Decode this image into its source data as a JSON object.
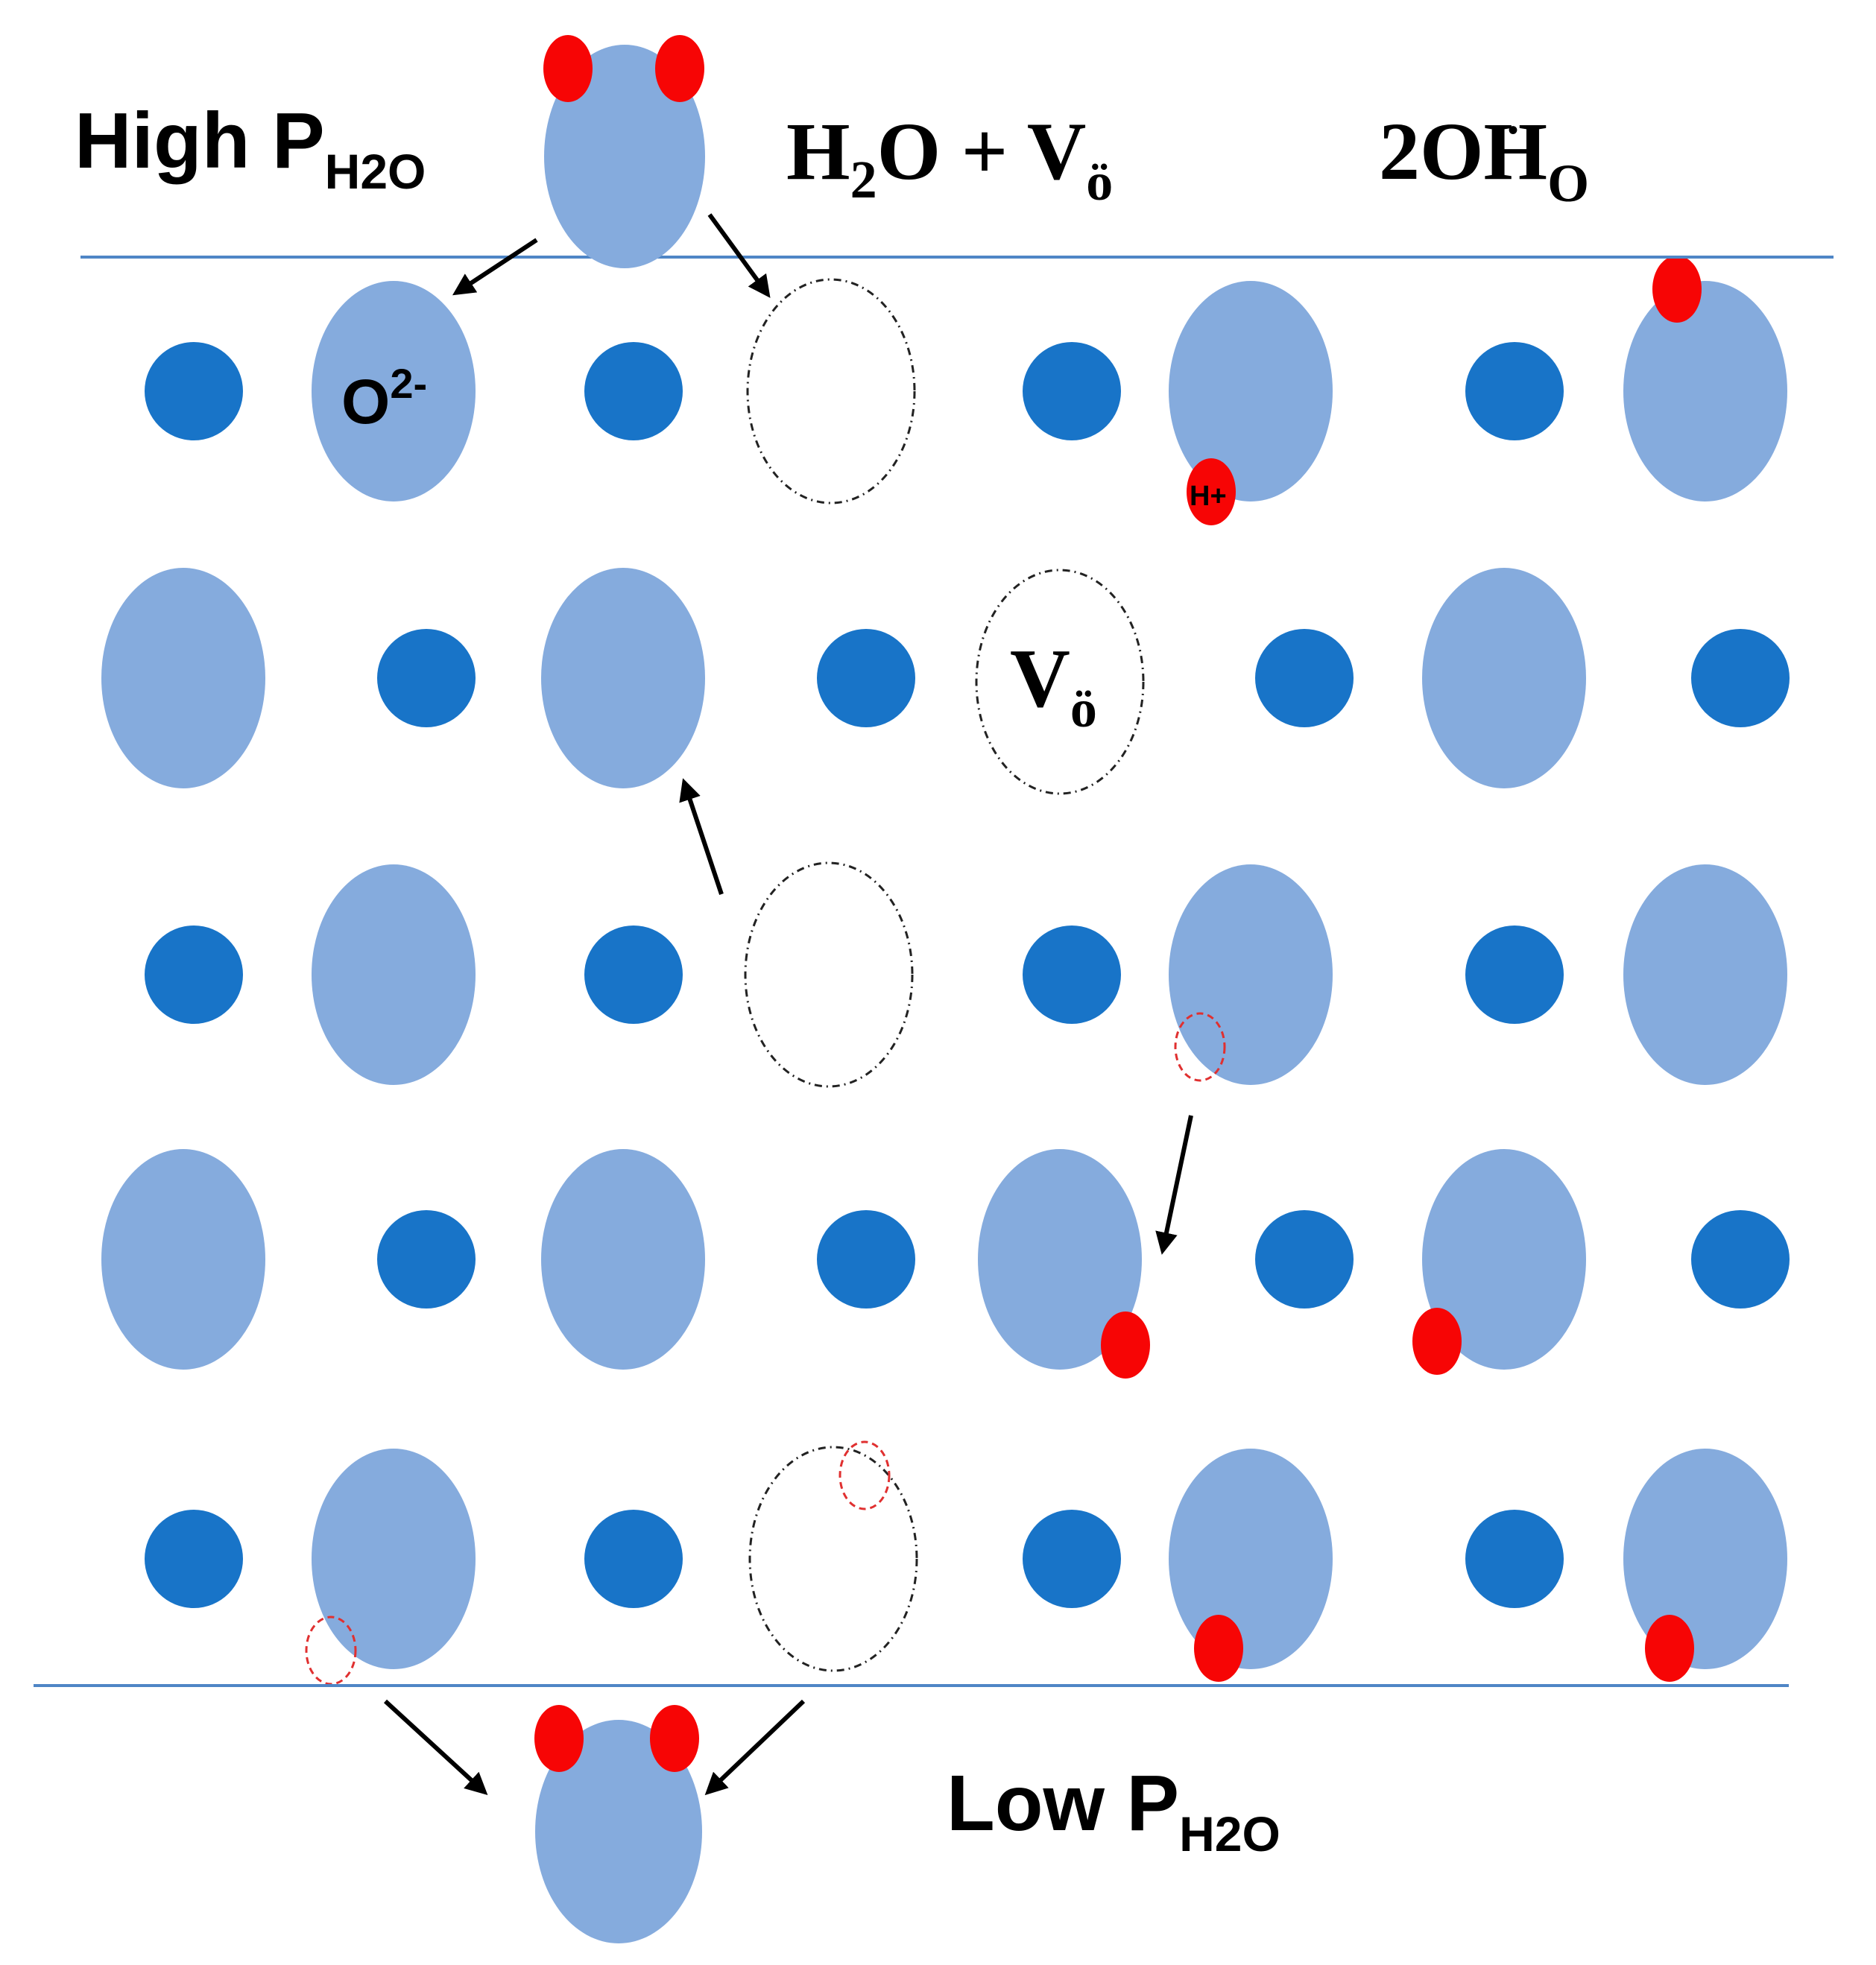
{
  "labels": {
    "high": {
      "main": "High P",
      "sub": "H2O"
    },
    "low": {
      "main": "Low P",
      "sub": "H2O"
    },
    "equation": {
      "h": "H",
      "two": "2",
      "o_plus": "O + V",
      "vac_sub": "ö",
      "rhs_main": "2OH",
      "rhs_sub": "O",
      "rhs_mark": "•"
    },
    "oxide_ion": {
      "main": "O",
      "sup": "2-"
    },
    "vacancy": {
      "main": "V",
      "sub": "ö"
    },
    "proton": "H+"
  },
  "colors": {
    "oxide": "#85ABDD",
    "cation": "#1874C8",
    "proton": "#F70505",
    "boundary": "#4F86C6",
    "outline": "#222222",
    "proton_outline": "#E03030",
    "arrow": "#000000"
  }
}
